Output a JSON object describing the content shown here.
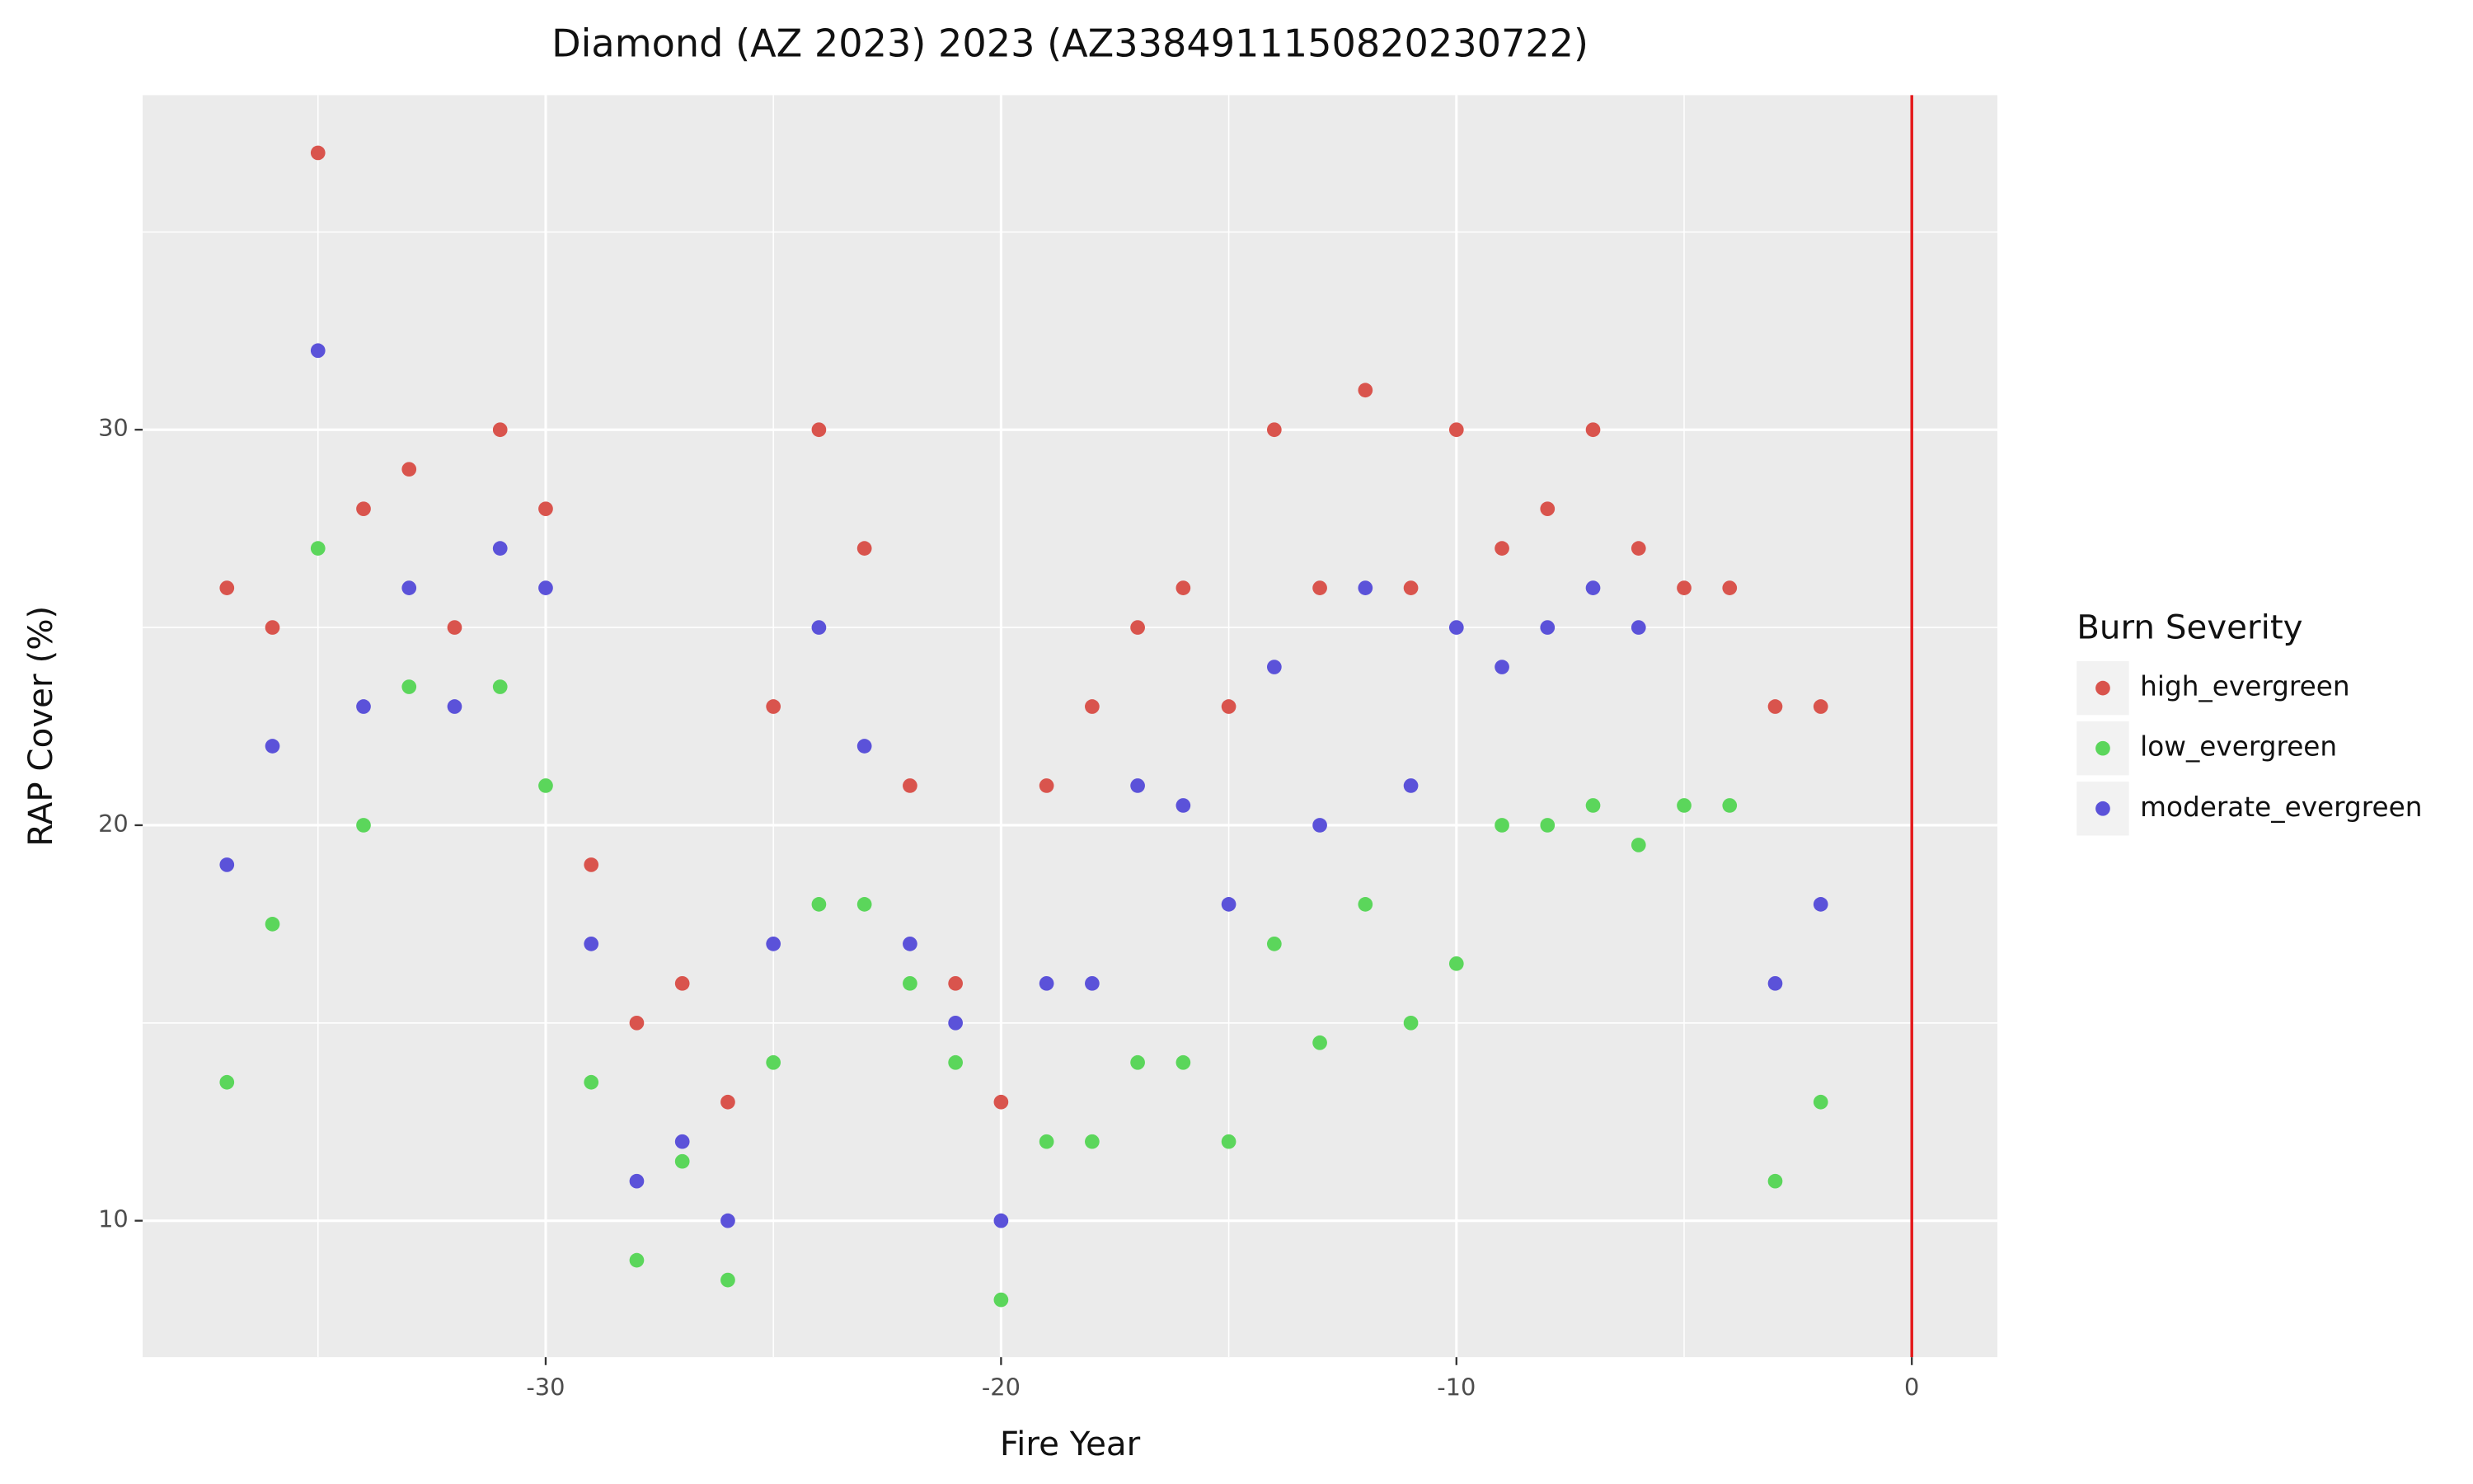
{
  "chart_data": {
    "type": "scatter",
    "title": "Diamond (AZ 2023) 2023 (AZ3384911150820230722)",
    "x_label": "Fire Year",
    "y_label": "RAP Cover (%)",
    "legend_title": "Burn Severity",
    "legend_position": "right",
    "xlim": [
      -38.85,
      1.88
    ],
    "ylim": [
      6.55,
      38.46
    ],
    "xticks": [
      -30,
      -20,
      -10,
      0
    ],
    "yticks": [
      10,
      20,
      30
    ],
    "xminor": [
      -35,
      -25,
      -15,
      -5
    ],
    "yminor": [
      15,
      25,
      35
    ],
    "grid": true,
    "vline": {
      "x": 0,
      "color": "#e41a1c"
    },
    "series": [
      {
        "name": "high_evergreen",
        "color": "#d9544d",
        "x": [
          -37,
          -36,
          -35,
          -34,
          -33,
          -32,
          -31,
          -30,
          -29,
          -28,
          -27,
          -26,
          -25,
          -24,
          -23,
          -22,
          -21,
          -20,
          -19,
          -18,
          -17,
          -16,
          -15,
          -14,
          -13,
          -12,
          -11,
          -10,
          -9,
          -8,
          -7,
          -6,
          -5,
          -4,
          -3,
          -2
        ],
        "values": [
          26,
          25,
          37,
          28,
          29,
          25,
          30,
          28,
          19,
          15,
          16,
          13,
          23,
          30,
          27,
          21,
          16,
          13,
          21,
          23,
          25,
          26,
          23,
          30,
          26,
          31,
          26,
          30,
          27,
          28,
          30,
          27,
          26,
          26,
          23,
          23
        ]
      },
      {
        "name": "low_evergreen",
        "color": "#5bd65b",
        "x": [
          -37,
          -36,
          -35,
          -34,
          -33,
          -31,
          -30,
          -29,
          -28,
          -27,
          -26,
          -25,
          -24,
          -23,
          -22,
          -21,
          -20,
          -19,
          -18,
          -17,
          -16,
          -15,
          -14,
          -13,
          -12,
          -11,
          -10,
          -9,
          -8,
          -7,
          -6,
          -5,
          -4,
          -3,
          -2
        ],
        "values": [
          13.5,
          17.5,
          27,
          20,
          23.5,
          23.5,
          21,
          13.5,
          9,
          11.5,
          8.5,
          14,
          18,
          18,
          16,
          14,
          8,
          12,
          12,
          14,
          14,
          12,
          17,
          14.5,
          18,
          15,
          16.5,
          20,
          20,
          20.5,
          19.5,
          20.5,
          20.5,
          11,
          13
        ]
      },
      {
        "name": "moderate_evergreen",
        "color": "#5b52d9",
        "x": [
          -37,
          -36,
          -35,
          -34,
          -33,
          -32,
          -31,
          -30,
          -29,
          -28,
          -27,
          -26,
          -25,
          -24,
          -23,
          -22,
          -21,
          -20,
          -19,
          -18,
          -17,
          -16,
          -15,
          -14,
          -13,
          -12,
          -11,
          -10,
          -9,
          -8,
          -7,
          -6,
          -3,
          -2
        ],
        "values": [
          19,
          22,
          32,
          23,
          26,
          23,
          27,
          26,
          17,
          11,
          12,
          10,
          17,
          25,
          22,
          17,
          15,
          10,
          16,
          16,
          21,
          20.5,
          18,
          24,
          20,
          26,
          21,
          25,
          24,
          25,
          26,
          25,
          16,
          18
        ]
      }
    ]
  }
}
